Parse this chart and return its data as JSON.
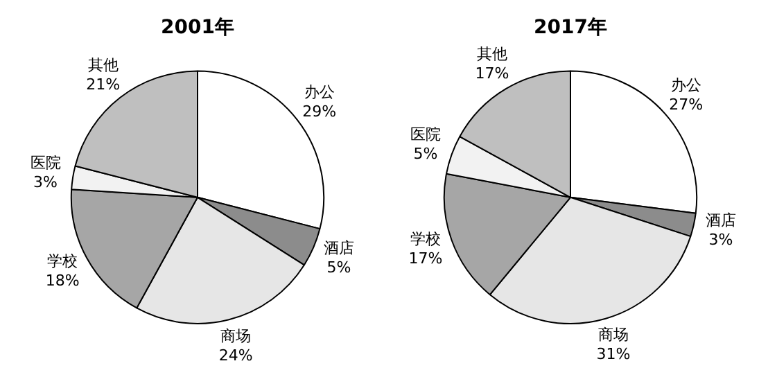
{
  "chart_data": [
    {
      "type": "pie",
      "title": "2001年",
      "categories": [
        "办公",
        "酒店",
        "商场",
        "学校",
        "医院",
        "其他"
      ],
      "values": [
        29,
        5,
        24,
        18,
        3,
        21
      ],
      "value_labels": [
        "29%",
        "5%",
        "24%",
        "18%",
        "3%",
        "21%"
      ],
      "colors": [
        "#ffffff",
        "#8c8c8c",
        "#e6e6e6",
        "#a6a6a6",
        "#f2f2f2",
        "#bfbfbf"
      ]
    },
    {
      "type": "pie",
      "title": "2017年",
      "categories": [
        "办公",
        "酒店",
        "商场",
        "学校",
        "医院",
        "其他"
      ],
      "values": [
        27,
        3,
        31,
        17,
        5,
        17
      ],
      "value_labels": [
        "27%",
        "3%",
        "31%",
        "17%",
        "5%",
        "17%"
      ],
      "colors": [
        "#ffffff",
        "#8c8c8c",
        "#e6e6e6",
        "#a6a6a6",
        "#f2f2f2",
        "#bfbfbf"
      ]
    }
  ]
}
